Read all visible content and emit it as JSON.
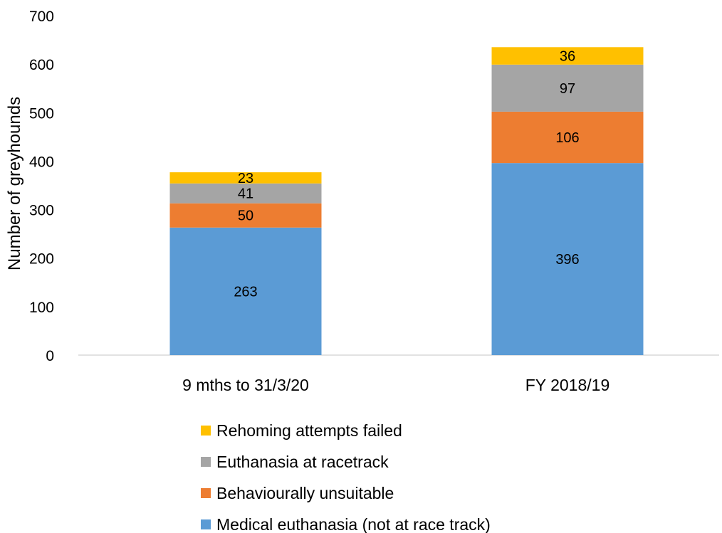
{
  "chart_data": {
    "type": "bar",
    "stacked": true,
    "title": "",
    "xlabel": "",
    "ylabel": "Number of greyhounds",
    "ylim": [
      0,
      700
    ],
    "yticks": [
      0,
      100,
      200,
      300,
      400,
      500,
      600,
      700
    ],
    "grid": false,
    "legend_position": "bottom",
    "categories": [
      "9 mths to 31/3/20",
      "FY 2018/19"
    ],
    "series": [
      {
        "name": "Medical euthanasia (not at race track)",
        "color": "#5B9BD5",
        "values": [
          263,
          396
        ]
      },
      {
        "name": "Behaviourally unsuitable",
        "color": "#ED7D31",
        "values": [
          50,
          106
        ]
      },
      {
        "name": "Euthanasia at racetrack",
        "color": "#A5A5A5",
        "values": [
          41,
          97
        ]
      },
      {
        "name": "Rehoming attempts failed",
        "color": "#FFC000",
        "values": [
          23,
          36
        ]
      }
    ],
    "data_labels": true
  }
}
